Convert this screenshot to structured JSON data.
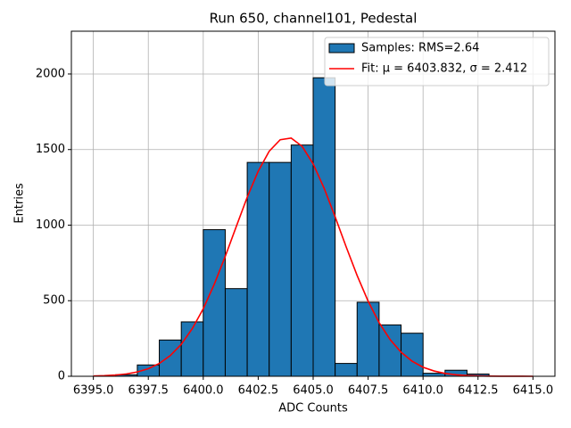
{
  "chart_data": {
    "type": "histogram",
    "title": "Run 650, channel101, Pedestal",
    "xlabel": "ADC Counts",
    "ylabel": "Entries",
    "bins": [
      6396,
      6397,
      6398,
      6399,
      6400,
      6401,
      6402,
      6403,
      6404,
      6405,
      6406,
      6407,
      6408,
      6409,
      6410,
      6411,
      6412,
      6413
    ],
    "series": [
      {
        "name": "Samples: RMS=2.64",
        "color": "#1f77b4",
        "values": [
          10,
          75,
          240,
          360,
          970,
          580,
          1415,
          1415,
          1530,
          1975,
          85,
          490,
          340,
          285,
          20,
          40,
          15
        ]
      },
      {
        "name": "Fit: μ = 6403.832, σ = 2.412",
        "color": "#ff0000",
        "x": [
          6395,
          6395.5,
          6396,
          6396.5,
          6397,
          6397.5,
          6398,
          6398.5,
          6399,
          6399.5,
          6400,
          6400.5,
          6401,
          6401.5,
          6402,
          6402.5,
          6403,
          6403.5,
          6404,
          6404.5,
          6405,
          6405.5,
          6406,
          6406.5,
          6407,
          6407.5,
          6408,
          6408.5,
          6409,
          6409.5,
          6410,
          6410.5,
          6411,
          6411.5,
          6412,
          6412.5,
          6413,
          6413.5,
          6414,
          6414.5,
          6415
        ],
        "values": [
          1.9,
          4,
          8.1,
          15.5,
          28.6,
          50.4,
          85,
          137,
          212,
          315,
          447,
          609,
          793,
          990,
          1185,
          1357,
          1489,
          1565,
          1576,
          1521,
          1405,
          1244,
          1055,
          857,
          667,
          497,
          355,
          243,
          159,
          100,
          60,
          35,
          19,
          10,
          5,
          2.5,
          1.2,
          0.5,
          0.2,
          0.1,
          0
        ]
      }
    ],
    "xlim": [
      6394,
      6416
    ],
    "ylim": [
      0,
      2283
    ],
    "xticks": [
      {
        "value": 6395,
        "label": "6395.0"
      },
      {
        "value": 6397.5,
        "label": "6397.5"
      },
      {
        "value": 6400,
        "label": "6400.0"
      },
      {
        "value": 6402.5,
        "label": "6402.5"
      },
      {
        "value": 6405,
        "label": "6405.0"
      },
      {
        "value": 6407.5,
        "label": "6407.5"
      },
      {
        "value": 6410,
        "label": "6410.0"
      },
      {
        "value": 6412.5,
        "label": "6412.5"
      },
      {
        "value": 6415,
        "label": "6415.0"
      }
    ],
    "yticks": [
      0,
      500,
      1000,
      1500,
      2000
    ],
    "grid": true,
    "legend": "upper right"
  }
}
